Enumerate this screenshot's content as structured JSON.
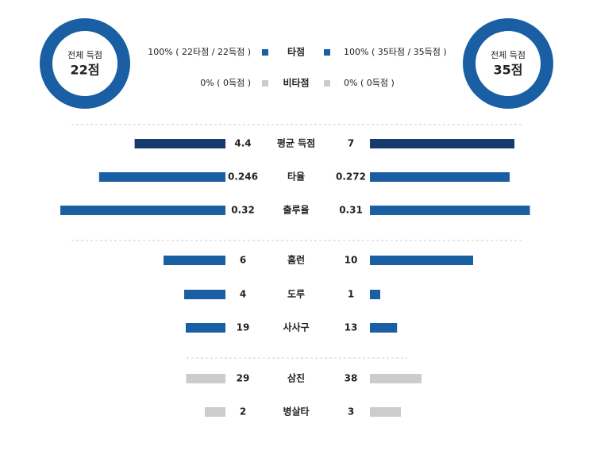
{
  "summary": {
    "left": {
      "caption": "전체 득점",
      "total": "22점",
      "rbi_share": "100% ( 22타점 / 22득점 )",
      "non_rbi_share": "0% ( 0득점 )"
    },
    "right": {
      "caption": "전체 득점",
      "total": "35점",
      "rbi_share": "100% ( 35타점 / 35득점 )",
      "non_rbi_share": "0% ( 0득점 )"
    },
    "rbi_label": "타점",
    "non_rbi_label": "비타점"
  },
  "rows": [
    {
      "label": "평균 득점",
      "left": 4.4,
      "right": 7,
      "color": "#153a6b"
    },
    {
      "label": "타율",
      "left": 0.246,
      "right": 0.272,
      "color": "#1a5fa3"
    },
    {
      "label": "출루율",
      "left": 0.32,
      "right": 0.31,
      "color": "#1a5fa3"
    },
    {
      "label": "홈런",
      "left": 6,
      "right": 10,
      "color": "#1a5fa3"
    },
    {
      "label": "도루",
      "left": 4,
      "right": 1,
      "color": "#1a5fa3"
    },
    {
      "label": "사사구",
      "left": 19,
      "right": 13,
      "color": "#1a5fa3"
    },
    {
      "label": "삼진",
      "left": 29,
      "right": 38,
      "color": "#cccccc"
    },
    {
      "label": "병살타",
      "left": 2,
      "right": 3,
      "color": "#cccccc"
    }
  ]
}
